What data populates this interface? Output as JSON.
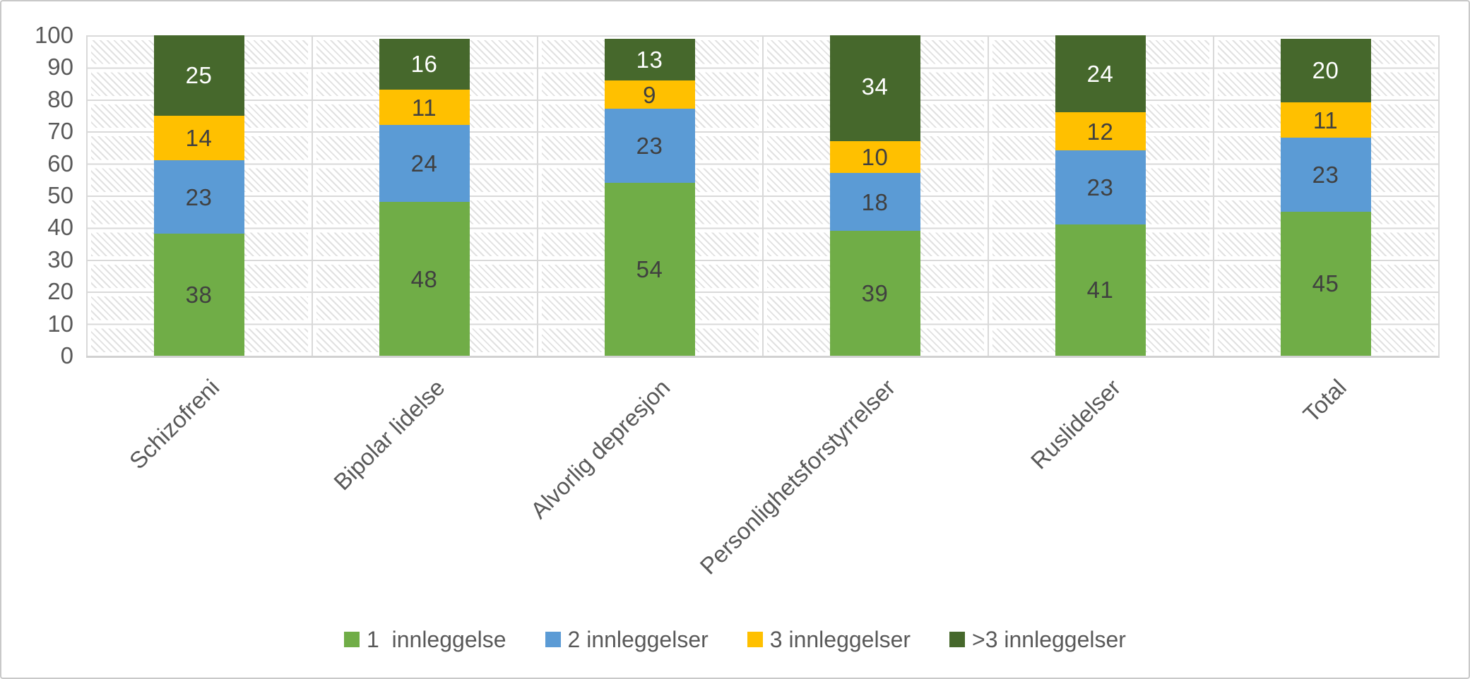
{
  "chart_data": {
    "type": "bar",
    "stacked": true,
    "orientation": "vertical",
    "categories": [
      "Schizofreni",
      "Bipolar lidelse",
      "Alvorlig depresjon",
      "Personlighetsforstyrrelser",
      "Ruslidelser",
      "Total"
    ],
    "series": [
      {
        "name": "1  innleggelse",
        "color": "#70AD47",
        "label_color": "#404040",
        "values": [
          38,
          48,
          54,
          39,
          41,
          45
        ]
      },
      {
        "name": "2 innleggelser",
        "color": "#5B9BD5",
        "label_color": "#404040",
        "values": [
          23,
          24,
          23,
          18,
          23,
          23
        ]
      },
      {
        "name": "3 innleggelser",
        "color": "#FFC000",
        "label_color": "#404040",
        "values": [
          14,
          11,
          9,
          10,
          12,
          11
        ]
      },
      {
        "name": ">3 innleggelser",
        "color": "#46682C",
        "label_color": "#FFFFFF",
        "values": [
          25,
          16,
          13,
          34,
          24,
          20
        ]
      }
    ],
    "title": "",
    "xlabel": "",
    "ylabel": "",
    "ylim": [
      0,
      100
    ],
    "yticks": [
      0,
      10,
      20,
      30,
      40,
      50,
      60,
      70,
      80,
      90,
      100
    ],
    "grid": true,
    "plot_background": "diagonal-hatch-pattern",
    "gridline_color": "#D9D9D9",
    "axis_text_color": "#595959",
    "legend_position": "bottom"
  }
}
